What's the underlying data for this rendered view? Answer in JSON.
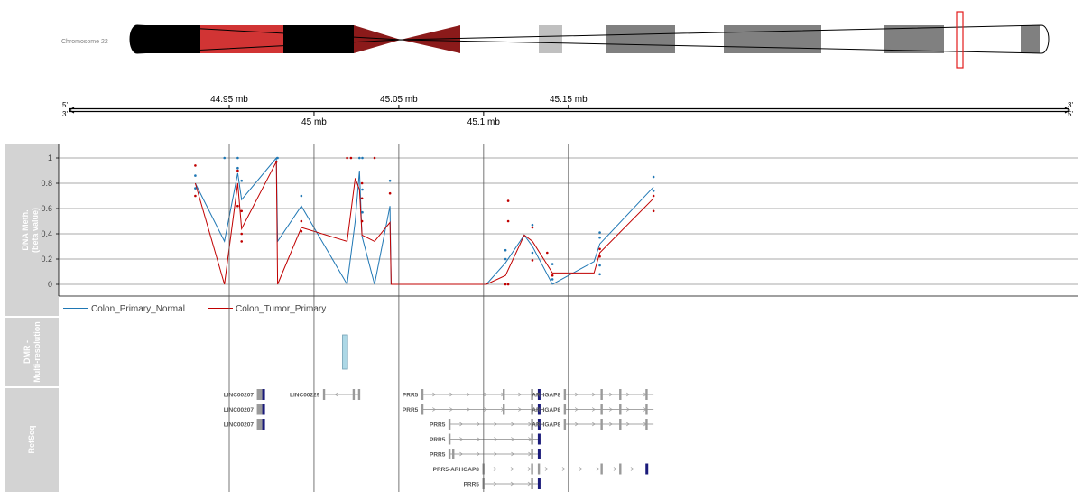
{
  "ideogram": {
    "chromosome_label": "Chromosome 22",
    "bands": [
      {
        "start": 0,
        "end": 0.1,
        "color": "#000000"
      },
      {
        "start": 0.1,
        "end": 0.2,
        "color": "#d13434"
      },
      {
        "start": 0.2,
        "end": 0.3,
        "color": "#000000"
      }
    ]
  },
  "axis": {
    "strand_left_top": "5'",
    "strand_left_bottom": "3'",
    "strand_right_top": "3'",
    "strand_right_bottom": "5'",
    "top_ticks": [
      {
        "mb": 44.95,
        "label": "44.95 mb"
      },
      {
        "mb": 45.05,
        "label": "45.05 mb"
      },
      {
        "mb": 45.15,
        "label": "45.15 mb"
      }
    ],
    "bottom_ticks": [
      {
        "mb": 45.0,
        "label": "45 mb"
      },
      {
        "mb": 45.1,
        "label": "45.1 mb"
      }
    ]
  },
  "tracks": {
    "meth_label_line1": "DNA Meth.",
    "meth_label_line2": "(beta value)",
    "dmr_label_line1": "DMR -",
    "dmr_label_line2": "Multi-resolution",
    "refseq_label": "RefSeq"
  },
  "chart_data": {
    "type": "line",
    "ylabel": "DNA Meth. (beta value)",
    "ylim": [
      0,
      1
    ],
    "yticks": [
      "0",
      "0.2",
      "0.4",
      "0.6",
      "0.8",
      "1"
    ],
    "grid": true,
    "legend_placement": "bottom-left",
    "series": [
      {
        "name": "Colon_Primary_Normal",
        "color": "#1f77b4",
        "x": [
          44.93,
          44.9472,
          44.955,
          44.9573,
          44.9778,
          44.9785,
          44.9925,
          45.0195,
          45.0243,
          45.0268,
          45.0283,
          45.0357,
          45.0448,
          45.0455,
          45.1016,
          45.1129,
          45.124,
          45.1288,
          45.1406,
          45.1651,
          45.1685,
          45.2002
        ],
        "y": [
          0.8,
          0.34,
          0.88,
          0.67,
          1.0,
          0.34,
          0.62,
          0.0,
          0.5,
          0.9,
          0.38,
          0.0,
          0.62,
          0.0,
          0.0,
          0.17,
          0.39,
          0.3,
          0.0,
          0.18,
          0.32,
          0.77
        ]
      },
      {
        "name": "Colon_Tumor_Primary",
        "color": "#c00000",
        "x": [
          44.93,
          44.9472,
          44.955,
          44.9573,
          44.9778,
          44.9785,
          44.9925,
          45.0195,
          45.0243,
          45.0268,
          45.0283,
          45.0357,
          45.0448,
          45.0455,
          45.1016,
          45.1129,
          45.124,
          45.1288,
          45.1406,
          45.1651,
          45.1685,
          45.2002
        ],
        "y": [
          0.8,
          0.0,
          0.8,
          0.44,
          0.97,
          0.0,
          0.45,
          0.34,
          0.84,
          0.75,
          0.39,
          0.34,
          0.49,
          0.0,
          0.0,
          0.07,
          0.39,
          0.34,
          0.09,
          0.09,
          0.25,
          0.68
        ]
      }
    ],
    "points": [
      {
        "series": 0,
        "x": 44.93,
        "y": [
          0.86,
          0.76
        ]
      },
      {
        "series": 1,
        "x": 44.93,
        "y": [
          0.94,
          0.7
        ]
      },
      {
        "series": 0,
        "x": 44.9472,
        "y": [
          1.0
        ]
      },
      {
        "series": 0,
        "x": 44.955,
        "y": [
          1.0,
          0.92
        ]
      },
      {
        "series": 1,
        "x": 44.955,
        "y": [
          0.9,
          0.62
        ]
      },
      {
        "series": 0,
        "x": 44.9573,
        "y": [
          0.82
        ]
      },
      {
        "series": 1,
        "x": 44.9573,
        "y": [
          0.58,
          0.4,
          0.34
        ]
      },
      {
        "series": 0,
        "x": 44.9785,
        "y": [
          1.0
        ]
      },
      {
        "series": 1,
        "x": 44.9778,
        "y": [
          0.97
        ]
      },
      {
        "series": 0,
        "x": 44.9925,
        "y": [
          0.7
        ]
      },
      {
        "series": 1,
        "x": 44.9925,
        "y": [
          0.5,
          0.42
        ]
      },
      {
        "series": 1,
        "x": 45.0195,
        "y": [
          1.0
        ]
      },
      {
        "series": 1,
        "x": 45.0218,
        "y": [
          1.0
        ]
      },
      {
        "series": 0,
        "x": 45.0268,
        "y": [
          1.0
        ]
      },
      {
        "series": 0,
        "x": 45.0285,
        "y": [
          1.0,
          0.75,
          0.57
        ]
      },
      {
        "series": 1,
        "x": 45.0283,
        "y": [
          0.8,
          0.68,
          0.5
        ]
      },
      {
        "series": 1,
        "x": 45.0357,
        "y": [
          1.0
        ]
      },
      {
        "series": 0,
        "x": 45.0448,
        "y": [
          0.82
        ]
      },
      {
        "series": 1,
        "x": 45.0448,
        "y": [
          0.72
        ]
      },
      {
        "series": 0,
        "x": 45.1129,
        "y": [
          0.27,
          0.2
        ]
      },
      {
        "series": 1,
        "x": 45.1129,
        "y": [
          0.0
        ]
      },
      {
        "series": 1,
        "x": 45.1145,
        "y": [
          0.66,
          0.5,
          0.0
        ]
      },
      {
        "series": 0,
        "x": 45.1288,
        "y": [
          0.47,
          0.25
        ]
      },
      {
        "series": 1,
        "x": 45.1288,
        "y": [
          0.45,
          0.19
        ]
      },
      {
        "series": 1,
        "x": 45.1375,
        "y": [
          0.25
        ]
      },
      {
        "series": 0,
        "x": 45.1406,
        "y": [
          0.16,
          0.04
        ]
      },
      {
        "series": 1,
        "x": 45.1406,
        "y": [
          0.07
        ]
      },
      {
        "series": 0,
        "x": 45.1685,
        "y": [
          0.41,
          0.37,
          0.15,
          0.08
        ]
      },
      {
        "series": 1,
        "x": 45.1685,
        "y": [
          0.28,
          0.22
        ]
      },
      {
        "series": 0,
        "x": 45.2002,
        "y": [
          0.85,
          0.74
        ]
      },
      {
        "series": 1,
        "x": 45.2002,
        "y": [
          0.7,
          0.58
        ]
      }
    ]
  },
  "dmr": [
    {
      "start": 45.0168,
      "end": 45.0198,
      "color": "#add8e6"
    }
  ],
  "genes": [
    {
      "label": "LINC00207",
      "row": 0,
      "start": 44.9665,
      "end": 44.9702,
      "strand": "",
      "exons": [
        44.9668,
        44.9678,
        44.9686,
        44.9694,
        44.97
      ]
    },
    {
      "label": "LINC00207",
      "row": 1,
      "start": 44.9665,
      "end": 44.9702,
      "strand": "",
      "exons": [
        44.9668,
        44.9678,
        44.9686,
        44.9694,
        44.97
      ]
    },
    {
      "label": "LINC00207",
      "row": 2,
      "start": 44.9665,
      "end": 44.9702,
      "strand": "",
      "exons": [
        44.9668,
        44.9678,
        44.9686,
        44.9694,
        44.97
      ]
    },
    {
      "label": "LINC00229",
      "row": 0,
      "start": 45.0055,
      "end": 45.0268,
      "strand": "-",
      "exons": [
        45.0058,
        45.0233,
        45.0265
      ]
    },
    {
      "label": "PRR5",
      "row": 0,
      "start": 45.0635,
      "end": 45.1335,
      "strand": "+",
      "exons": [
        45.0638,
        45.1118,
        45.1285,
        45.1325
      ]
    },
    {
      "label": "PRR5",
      "row": 1,
      "start": 45.0635,
      "end": 45.1335,
      "strand": "+",
      "exons": [
        45.0638,
        45.1118,
        45.1285,
        45.1325
      ]
    },
    {
      "label": "PRR5",
      "row": 2,
      "start": 45.0795,
      "end": 45.1335,
      "strand": "+",
      "exons": [
        45.0798,
        45.1285,
        45.1325
      ]
    },
    {
      "label": "PRR5",
      "row": 3,
      "start": 45.0795,
      "end": 45.1335,
      "strand": "+",
      "exons": [
        45.0798,
        45.1285,
        45.1325
      ]
    },
    {
      "label": "PRR5",
      "row": 4,
      "start": 45.0795,
      "end": 45.1335,
      "strand": "+",
      "exons": [
        45.0798,
        45.082,
        45.1285,
        45.1325
      ]
    },
    {
      "label": "ARHGAP8",
      "row": 0,
      "start": 45.1475,
      "end": 45.2002,
      "strand": "+",
      "exons": [
        45.1478,
        45.1695,
        45.1805,
        45.196
      ]
    },
    {
      "label": "ARHGAP8",
      "row": 1,
      "start": 45.1475,
      "end": 45.2002,
      "strand": "+",
      "exons": [
        45.1478,
        45.1695,
        45.1805,
        45.196
      ]
    },
    {
      "label": "ARHGAP8",
      "row": 2,
      "start": 45.1475,
      "end": 45.2002,
      "strand": "+",
      "exons": [
        45.1478,
        45.1695,
        45.1805,
        45.196
      ]
    },
    {
      "label": "PRR5-ARHGAP8",
      "row": 5,
      "start": 45.0995,
      "end": 45.2002,
      "strand": "+",
      "exons": [
        45.0998,
        45.1285,
        45.1325,
        45.1695,
        45.1805,
        45.196
      ]
    },
    {
      "label": "PRR5",
      "row": 6,
      "start": 45.0995,
      "end": 45.1335,
      "strand": "+",
      "exons": [
        45.0998,
        45.1285,
        45.1325
      ]
    }
  ]
}
